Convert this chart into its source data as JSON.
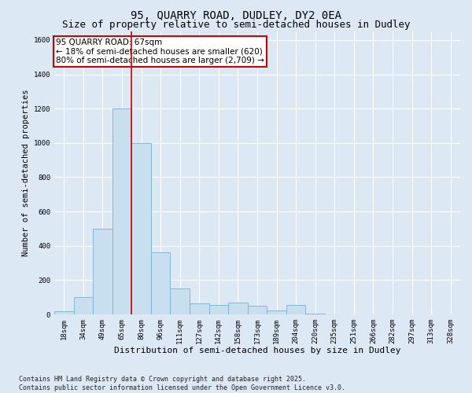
{
  "title": "95, QUARRY ROAD, DUDLEY, DY2 0EA",
  "subtitle": "Size of property relative to semi-detached houses in Dudley",
  "xlabel": "Distribution of semi-detached houses by size in Dudley",
  "ylabel": "Number of semi-detached properties",
  "footer_line1": "Contains HM Land Registry data © Crown copyright and database right 2025.",
  "footer_line2": "Contains public sector information licensed under the Open Government Licence v3.0.",
  "bins": [
    "18sqm",
    "34sqm",
    "49sqm",
    "65sqm",
    "80sqm",
    "96sqm",
    "111sqm",
    "127sqm",
    "142sqm",
    "158sqm",
    "173sqm",
    "189sqm",
    "204sqm",
    "220sqm",
    "235sqm",
    "251sqm",
    "266sqm",
    "282sqm",
    "297sqm",
    "313sqm",
    "328sqm"
  ],
  "values": [
    20,
    100,
    500,
    1200,
    1000,
    360,
    150,
    65,
    55,
    70,
    50,
    25,
    55,
    5,
    2,
    1,
    1,
    0,
    0,
    0,
    0
  ],
  "bar_color": "#c8dff0",
  "bar_edge_color": "#7ab0d4",
  "red_line_x": 3.5,
  "red_line_color": "#cc0000",
  "annotation_text": "95 QUARRY ROAD: 67sqm\n← 18% of semi-detached houses are smaller (620)\n80% of semi-detached houses are larger (2,709) →",
  "annotation_box_facecolor": "#ffffff",
  "annotation_box_edgecolor": "#cc0000",
  "ylim": [
    0,
    1650
  ],
  "yticks": [
    0,
    200,
    400,
    600,
    800,
    1000,
    1200,
    1400,
    1600
  ],
  "fig_background": "#dde8f5",
  "plot_background": "#dde8f5",
  "grid_color": "#ffffff",
  "title_fontsize": 10,
  "subtitle_fontsize": 9,
  "xlabel_fontsize": 8,
  "ylabel_fontsize": 7.5,
  "tick_fontsize": 6.5,
  "annotation_fontsize": 7.5,
  "footer_fontsize": 6
}
